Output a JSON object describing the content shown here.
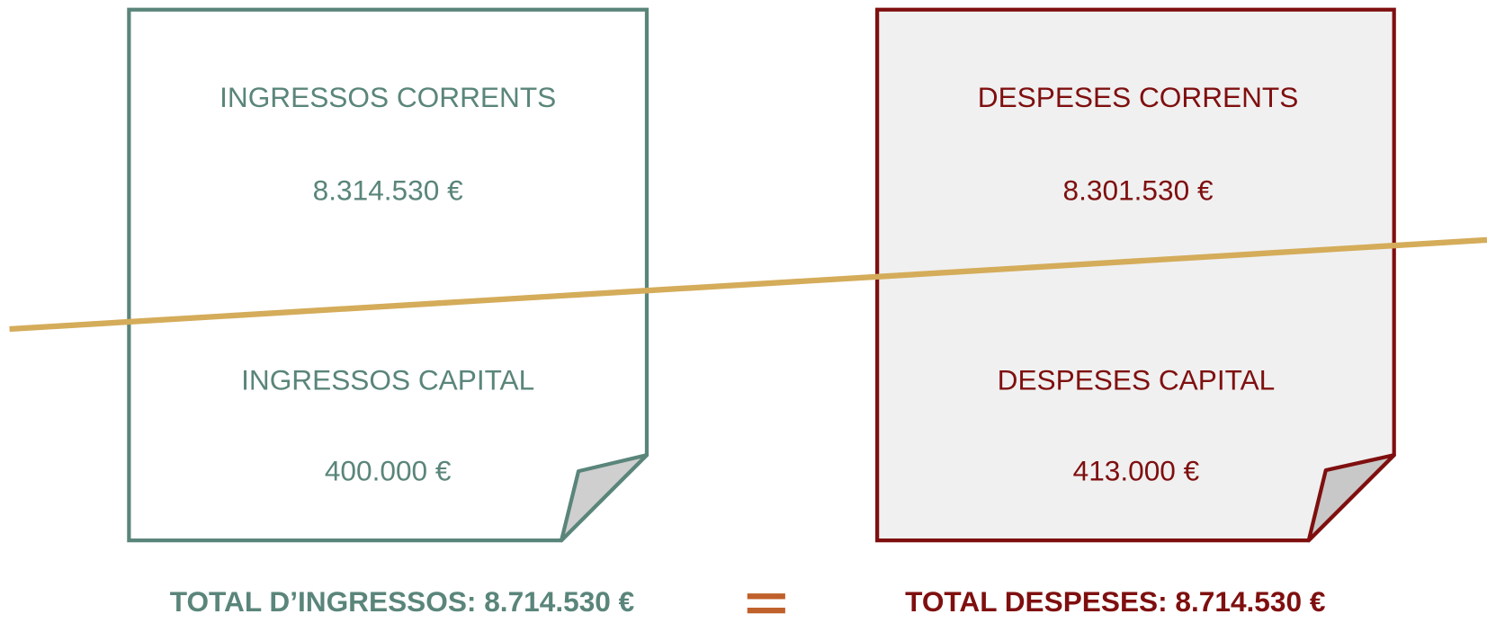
{
  "income": {
    "heading_current": "INGRESSOS CORRENTS",
    "amount_current": "8.314.530 €",
    "heading_capital": "INGRESSOS CAPITAL",
    "amount_capital": "400.000 €",
    "total": "TOTAL D’INGRESSOS: 8.714.530 €"
  },
  "expenses": {
    "heading_current": "DESPESES CORRENTS",
    "amount_current": "8.301.530 €",
    "heading_capital": "DESPESES CAPITAL",
    "amount_capital": "413.000 €",
    "total": "TOTAL DESPESES: 8.714.530 €"
  }
}
